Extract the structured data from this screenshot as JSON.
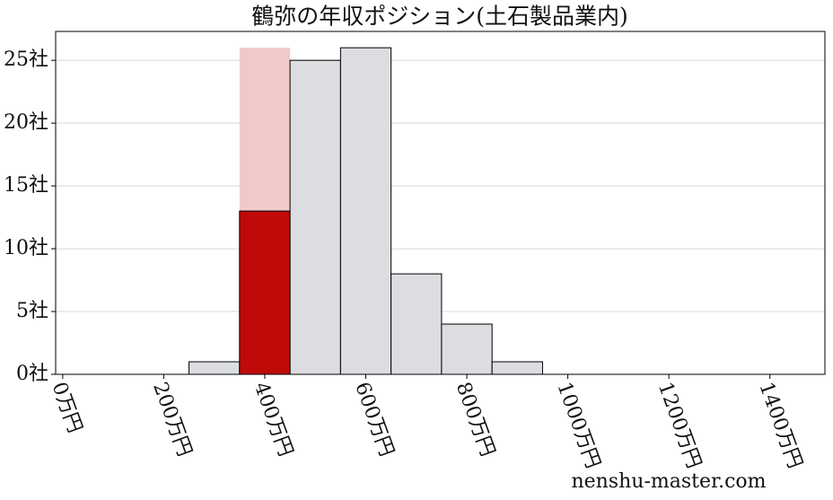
{
  "chart_data": {
    "type": "histogram",
    "title": "鶴弥の年収ポジション(土石製品業内)",
    "bins": [
      250,
      350,
      450,
      550,
      650,
      750,
      850,
      950
    ],
    "counts": [
      1,
      26,
      25,
      26,
      8,
      4,
      1
    ],
    "colors": [
      "#dcdde0",
      "#f0caca",
      "#dcdde0",
      "#dcdde0",
      "#dcdde0",
      "#dcdde0",
      "#dcdde0"
    ],
    "highlight": {
      "bins": [
        350,
        450
      ],
      "count": 13,
      "color": "#c00a0a"
    },
    "xlim": [
      -14,
      1509
    ],
    "ylim": [
      0,
      27.3
    ],
    "xticks": [
      {
        "value": 0,
        "label": "0万円"
      },
      {
        "value": 200,
        "label": "200万円"
      },
      {
        "value": 400,
        "label": "400万円"
      },
      {
        "value": 600,
        "label": "600万円"
      },
      {
        "value": 800,
        "label": "800万円"
      },
      {
        "value": 1000,
        "label": "1000万円"
      },
      {
        "value": 1200,
        "label": "1200万円"
      },
      {
        "value": 1400,
        "label": "1400万円"
      }
    ],
    "yticks": [
      {
        "value": 0,
        "label": "0社"
      },
      {
        "value": 5,
        "label": "5社"
      },
      {
        "value": 10,
        "label": "10社"
      },
      {
        "value": 15,
        "label": "15社"
      },
      {
        "value": 20,
        "label": "20社"
      },
      {
        "value": 25,
        "label": "25社"
      }
    ],
    "grid": true,
    "watermark": "nenshu-master.com"
  }
}
